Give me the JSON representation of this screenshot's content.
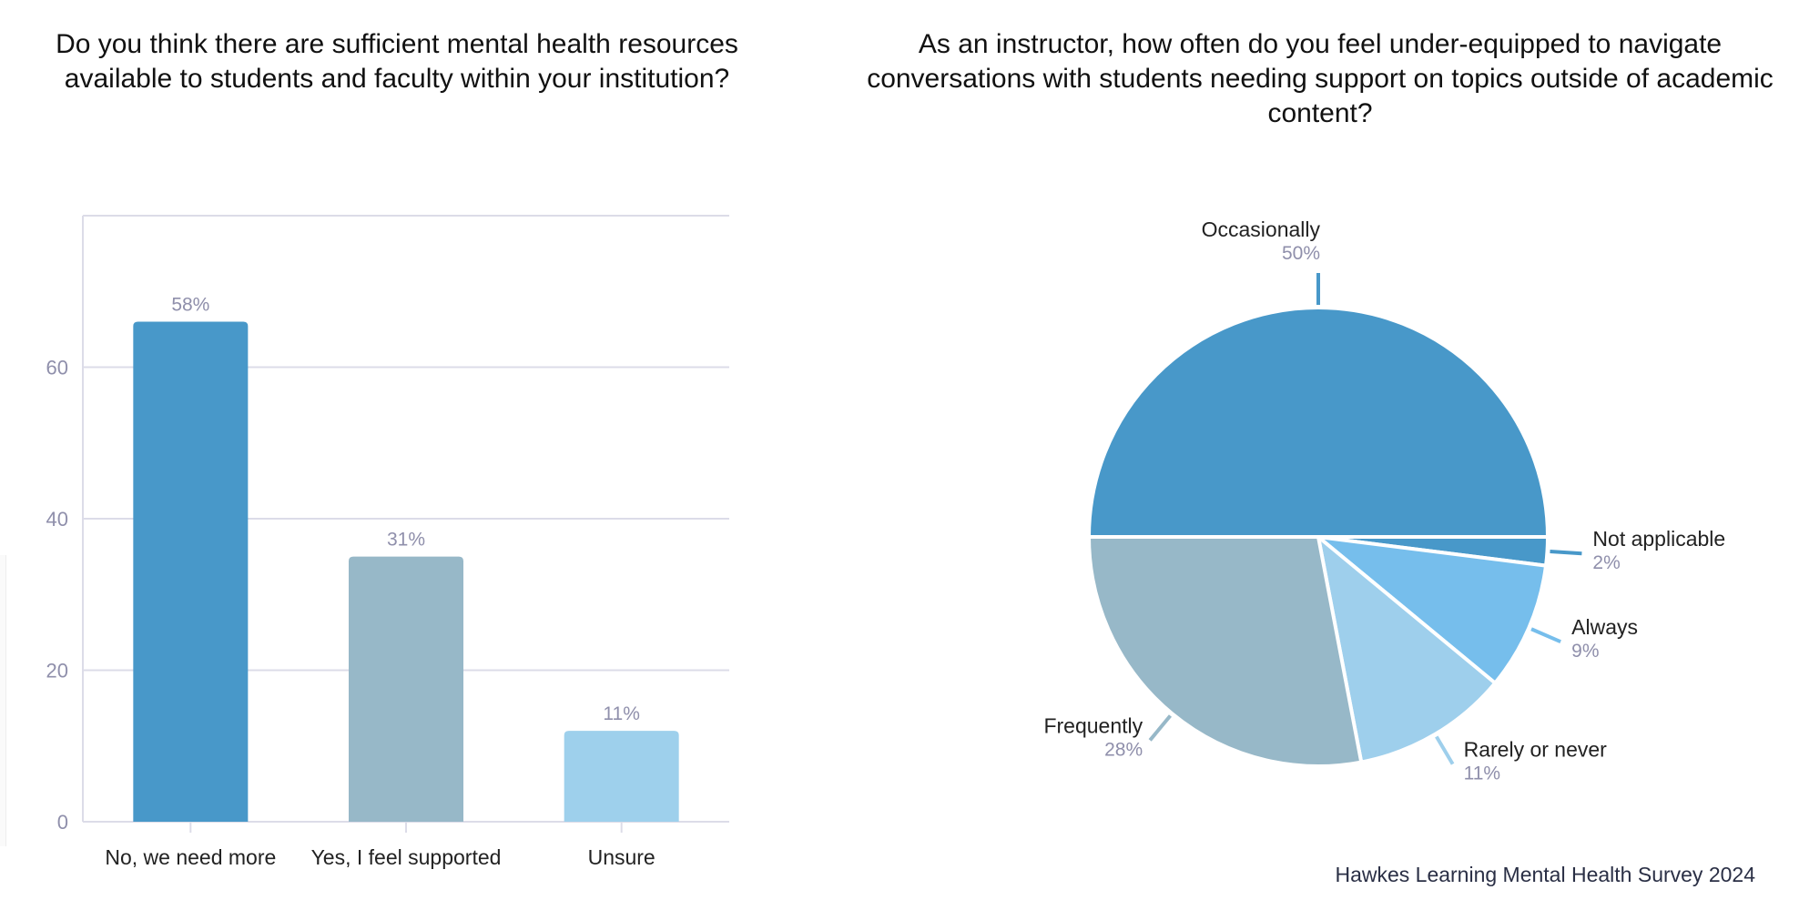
{
  "chart_data": [
    {
      "type": "bar",
      "title": "Do you think there are sufficient mental health resources available to students and faculty within your institution?",
      "categories": [
        "No, we need more",
        "Yes, I feel supported",
        "Unsure"
      ],
      "values": [
        66,
        35,
        12
      ],
      "data_labels": [
        "58%",
        "31%",
        "11%"
      ],
      "colors": [
        "#4898C9",
        "#97B8C8",
        "#9ED0EC"
      ],
      "yticks": [
        "0",
        "20",
        "40",
        "60"
      ],
      "ylim": [
        0,
        80
      ],
      "grid": true,
      "xlabel": "",
      "ylabel": ""
    },
    {
      "type": "pie",
      "title": "As an instructor, how often do you feel under-equipped to navigate conversations with students needing support on topics outside of academic content?",
      "slices": [
        {
          "label": "Not applicable",
          "value": 2,
          "pct": "2%",
          "color": "#4898C9"
        },
        {
          "label": "Always",
          "value": 9,
          "pct": "9%",
          "color": "#76BEEC"
        },
        {
          "label": "Rarely or never",
          "value": 11,
          "pct": "11%",
          "color": "#9ECFEC"
        },
        {
          "label": "Frequently",
          "value": 28,
          "pct": "28%",
          "color": "#97B8C8"
        },
        {
          "label": "Occasionally",
          "value": 50,
          "pct": "50%",
          "color": "#4898C9"
        }
      ]
    }
  ],
  "footer": "Hawkes Learning Mental Health Survey 2024"
}
